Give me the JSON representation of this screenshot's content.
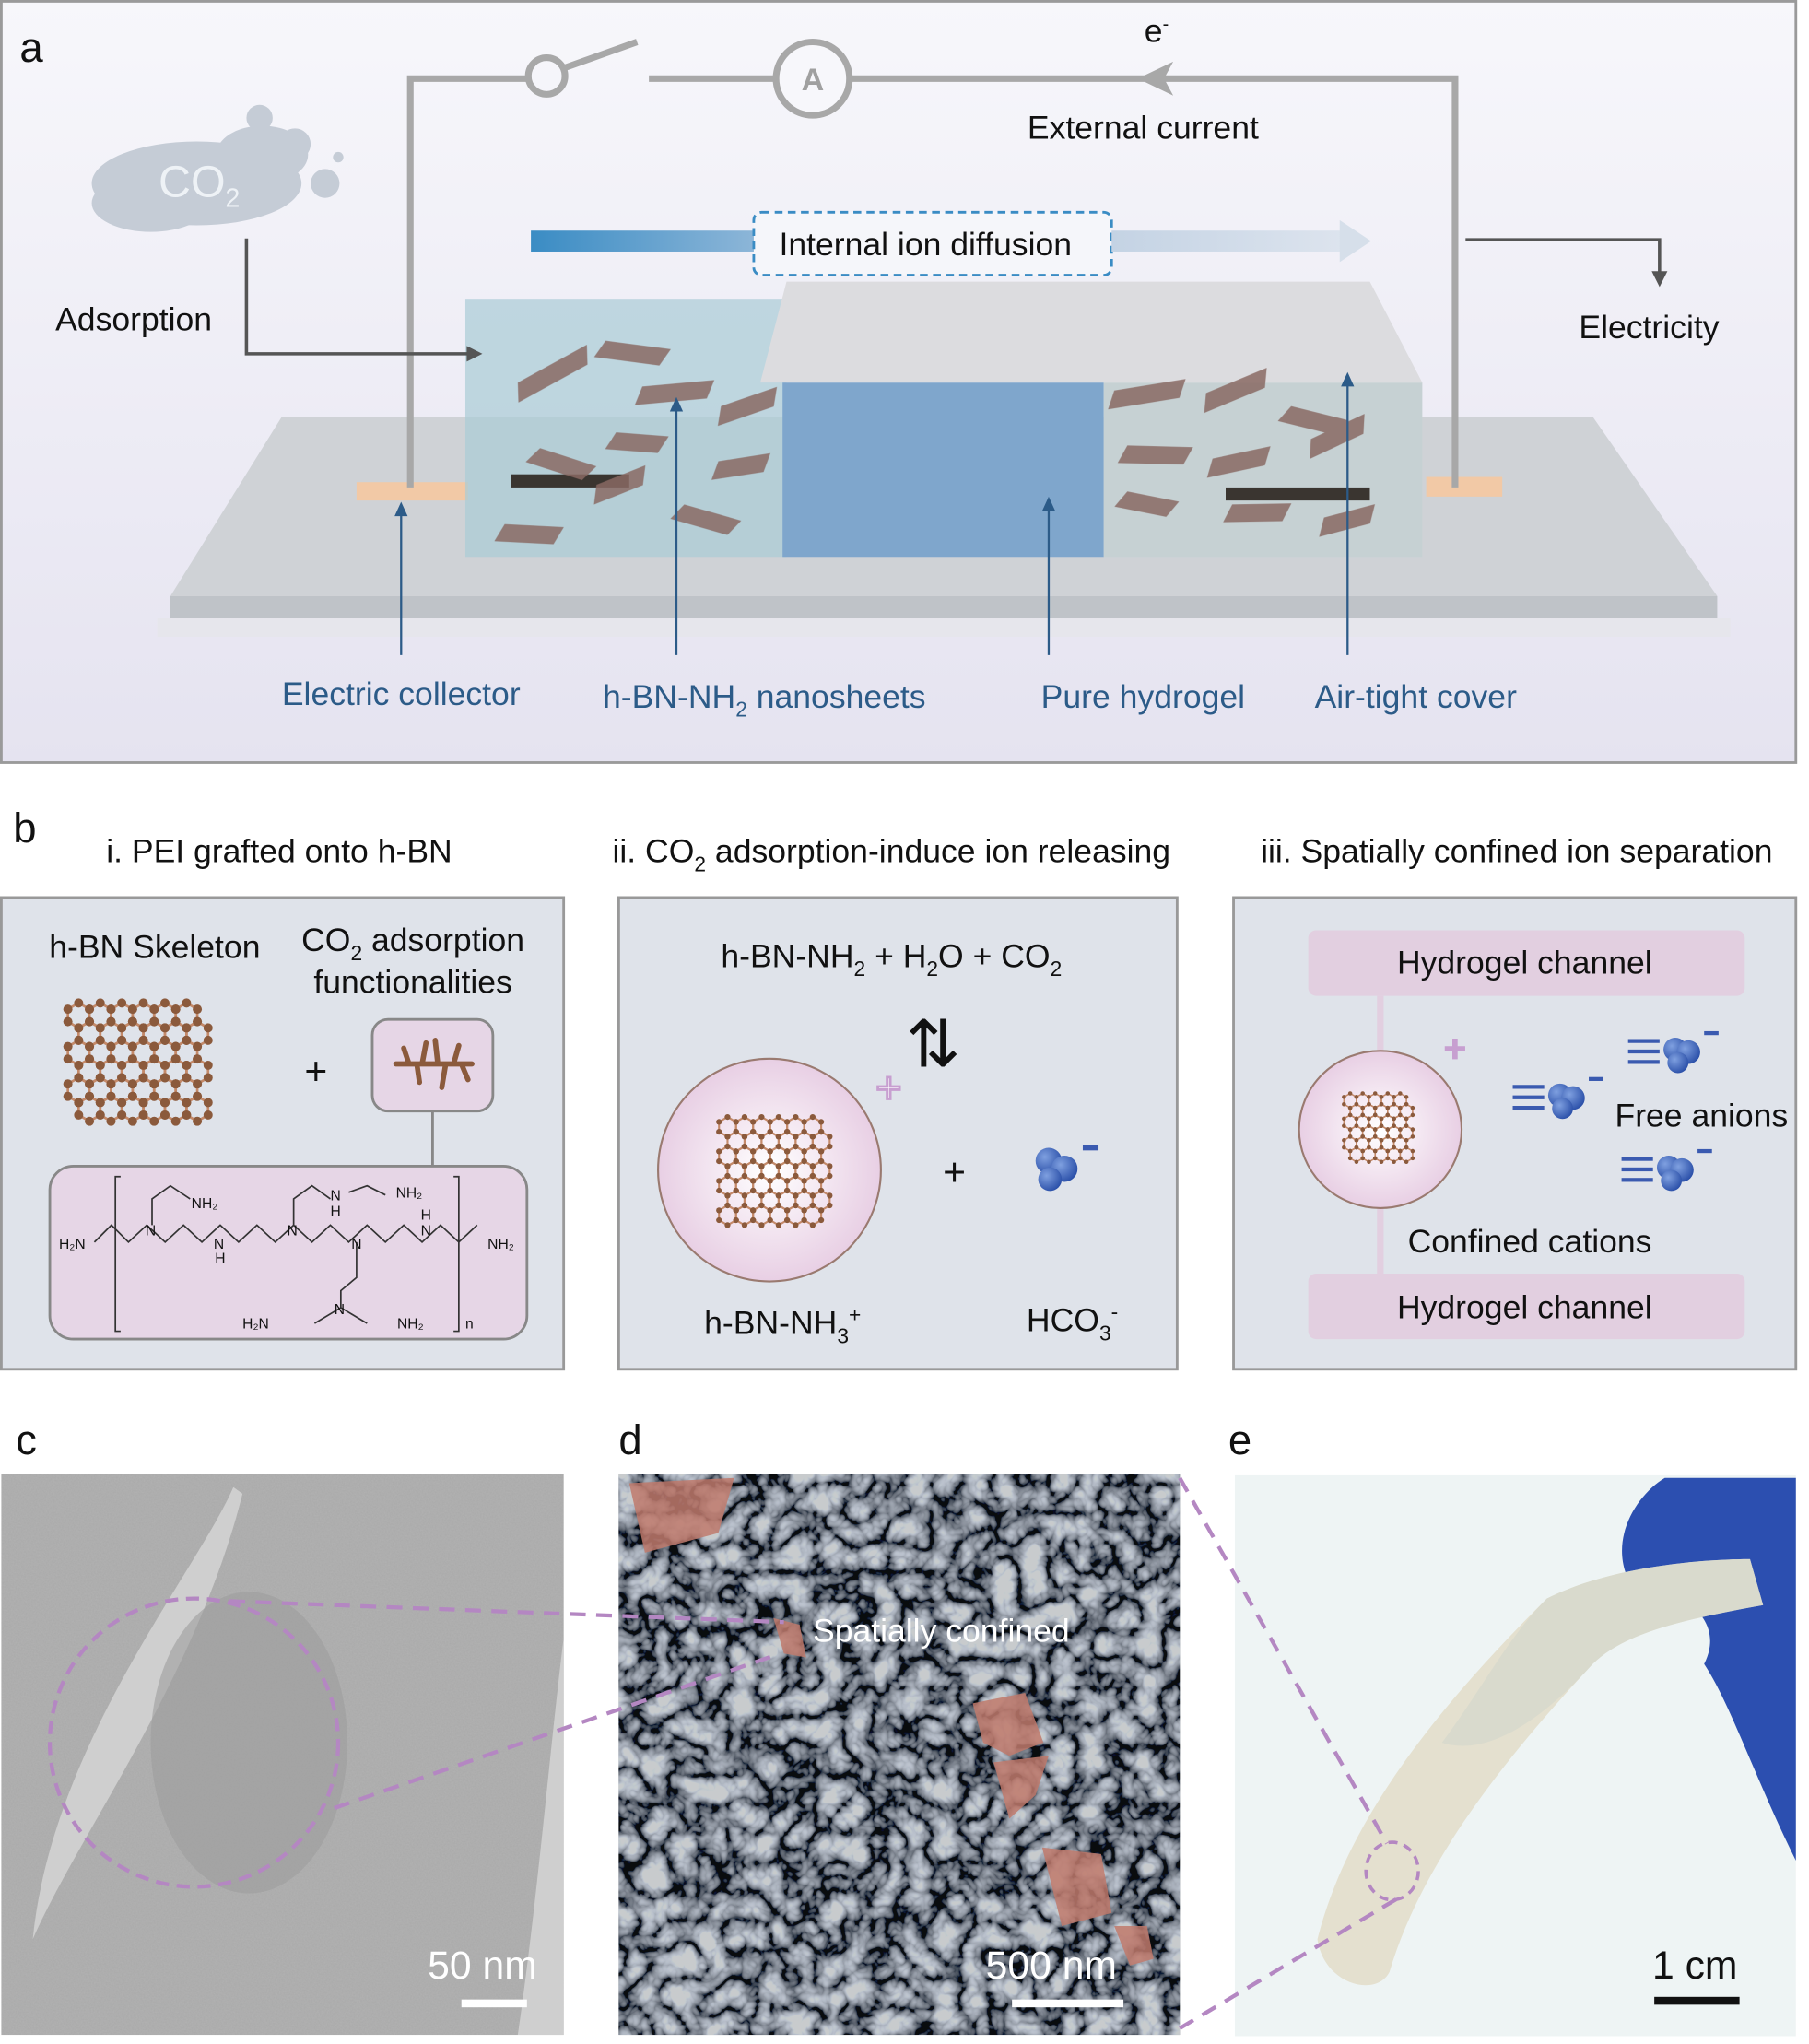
{
  "panel_a": {
    "letter": "a",
    "electron": "e",
    "electron_sup": "-",
    "ammeter": "A",
    "external_current": "External current",
    "co2": [
      "CO",
      "2"
    ],
    "adsorption": "Adsorption",
    "internal_ion_diffusion": "Internal ion diffusion",
    "electricity": "Electricity",
    "labels": {
      "electric_collector": "Electric collector",
      "nanosheets": [
        "h-BN-NH",
        "2",
        " nanosheets"
      ],
      "pure_hydrogel": "Pure hydrogel",
      "air_tight_cover": "Air-tight cover"
    }
  },
  "panel_b": {
    "letter": "b",
    "heading_i": "i. PEI grafted onto h-BN",
    "heading_ii": [
      "ii. CO",
      "2",
      " adsorption-induce ion releasing"
    ],
    "heading_iii": "iii. Spatially confined ion separation",
    "box_i": {
      "skeleton": "h-BN Skeleton",
      "co2_adsorption": [
        "CO",
        "2",
        " adsorption"
      ],
      "functionalities": "functionalities",
      "plus": "+",
      "pei": {
        "h2n": "H₂N",
        "nh2": "NH₂",
        "n": "N",
        "h": "H",
        "sub_n": "n"
      }
    },
    "box_ii": {
      "equation": [
        "h-BN-NH",
        "2",
        " + H",
        "2",
        "O + CO",
        "2"
      ],
      "equilibrium": "⇅",
      "plus": "+",
      "cation_label": [
        "h-BN-NH",
        "3",
        "+"
      ],
      "anion_label": [
        "HCO",
        "3",
        "-"
      ]
    },
    "box_iii": {
      "channel_top": "Hydrogel channel",
      "channel_bottom": "Hydrogel channel",
      "free_anions": "Free anions",
      "confined_cations": "Confined cations"
    }
  },
  "panel_c": {
    "letter": "c",
    "scale": "50 nm"
  },
  "panel_d": {
    "letter": "d",
    "annotation": "Spatially confined",
    "scale": "500 nm"
  },
  "panel_e": {
    "letter": "e",
    "scale": "1 cm"
  },
  "colors": {
    "label_blue": "#2c5b88",
    "nanosheet": "#8a6a64",
    "hydrogel": "#7fa6cc",
    "highlight": "#b487c2",
    "channel": "#e2cfe0",
    "box_bg": "#dfe3ea"
  }
}
